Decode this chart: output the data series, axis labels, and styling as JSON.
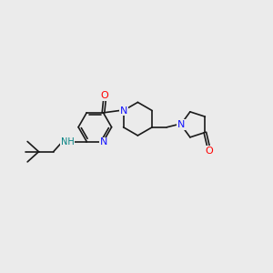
{
  "bg_color": "#ebebeb",
  "bond_color": "#1a1a1a",
  "N_color": "#1414ff",
  "O_color": "#ff0000",
  "NH_color": "#008080",
  "font_size": 7.0,
  "bond_width": 1.2,
  "xlim": [
    0,
    10
  ],
  "ylim": [
    0,
    10
  ]
}
